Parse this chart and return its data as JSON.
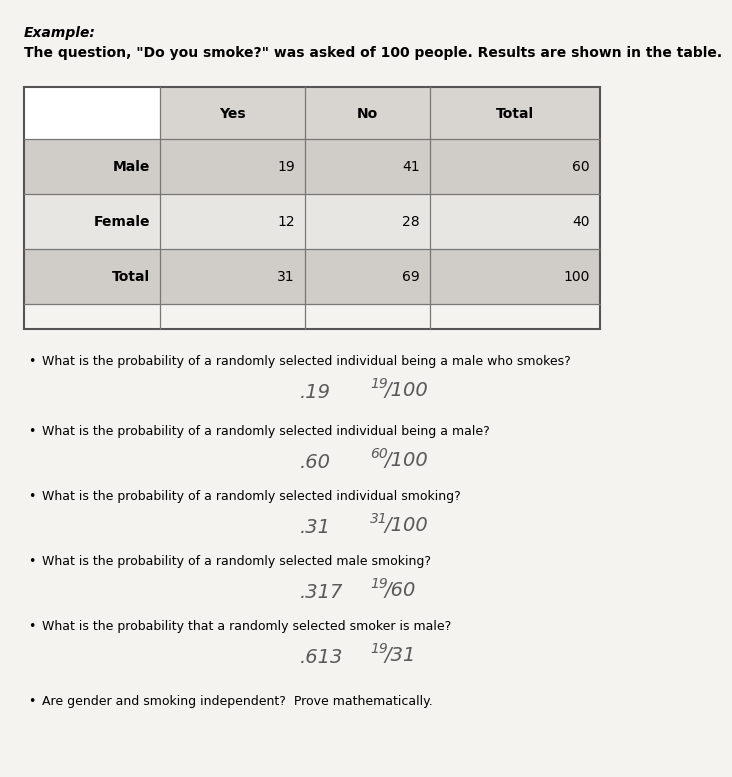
{
  "bg_color": "#f0eeec",
  "paper_color": "#f5f3f0",
  "title_example": "Example:",
  "intro_text": "The question, \"Do you smoke?\" was asked of 100 people. Results are shown in the table.",
  "table_headers": [
    "",
    "Yes",
    "No",
    "Total"
  ],
  "table_rows": [
    [
      "Male",
      "19",
      "41",
      "60"
    ],
    [
      "Female",
      "12",
      "28",
      "40"
    ],
    [
      "Total",
      "31",
      "69",
      "100"
    ]
  ],
  "header_bg": "#d8d4d0",
  "row_bg_odd": "#d0ccc8",
  "row_bg_even": "#e8e6e3",
  "questions": [
    "What is the probability of a randomly selected individual being a male who smokes?",
    "What is the probability of a randomly selected individual being a male?",
    "What is the probability of a randomly selected individual smoking?",
    "What is the probability of a randomly selected male smoking?",
    "What is the probability that a randomly selected smoker is male?",
    "Are gender and smoking independent?  Prove mathematically."
  ],
  "answer_decimals": [
    ".19",
    ".60",
    ".31",
    ".317",
    ".613",
    ""
  ],
  "answer_fractions": [
    "19/100",
    "60/100",
    "31/100",
    "19/60",
    "19/31",
    ""
  ],
  "handwrite_color": "#5a5a5a"
}
